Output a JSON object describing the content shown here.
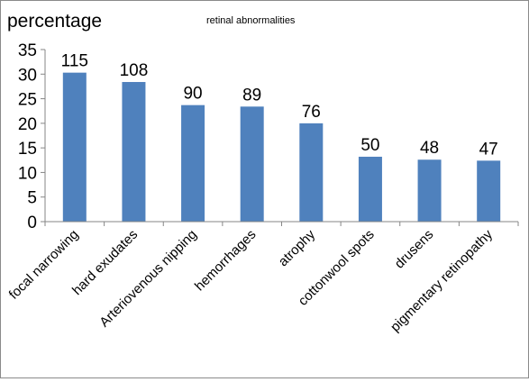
{
  "chart_data": {
    "type": "bar",
    "title": "retinal abnormalities",
    "ylabel": "percentage",
    "xlabel": "",
    "categories": [
      "focal narrowing",
      "hard exudates",
      "Arteriovenous nipping",
      "hemorrhages",
      "atrophy",
      "cottonwool spots",
      "drusens",
      "pigmentary retinopathy"
    ],
    "values": [
      30.3,
      28.4,
      23.7,
      23.4,
      20.0,
      13.2,
      12.6,
      12.4
    ],
    "data_labels": [
      "115",
      "108",
      "90",
      "89",
      "76",
      "50",
      "48",
      "47"
    ],
    "ylim": [
      0,
      35
    ],
    "yticks": [
      0,
      5,
      10,
      15,
      20,
      25,
      30,
      35
    ],
    "grid": false,
    "legend": "none",
    "bar_color": "#4F81BD",
    "axis_color": "#868686"
  }
}
